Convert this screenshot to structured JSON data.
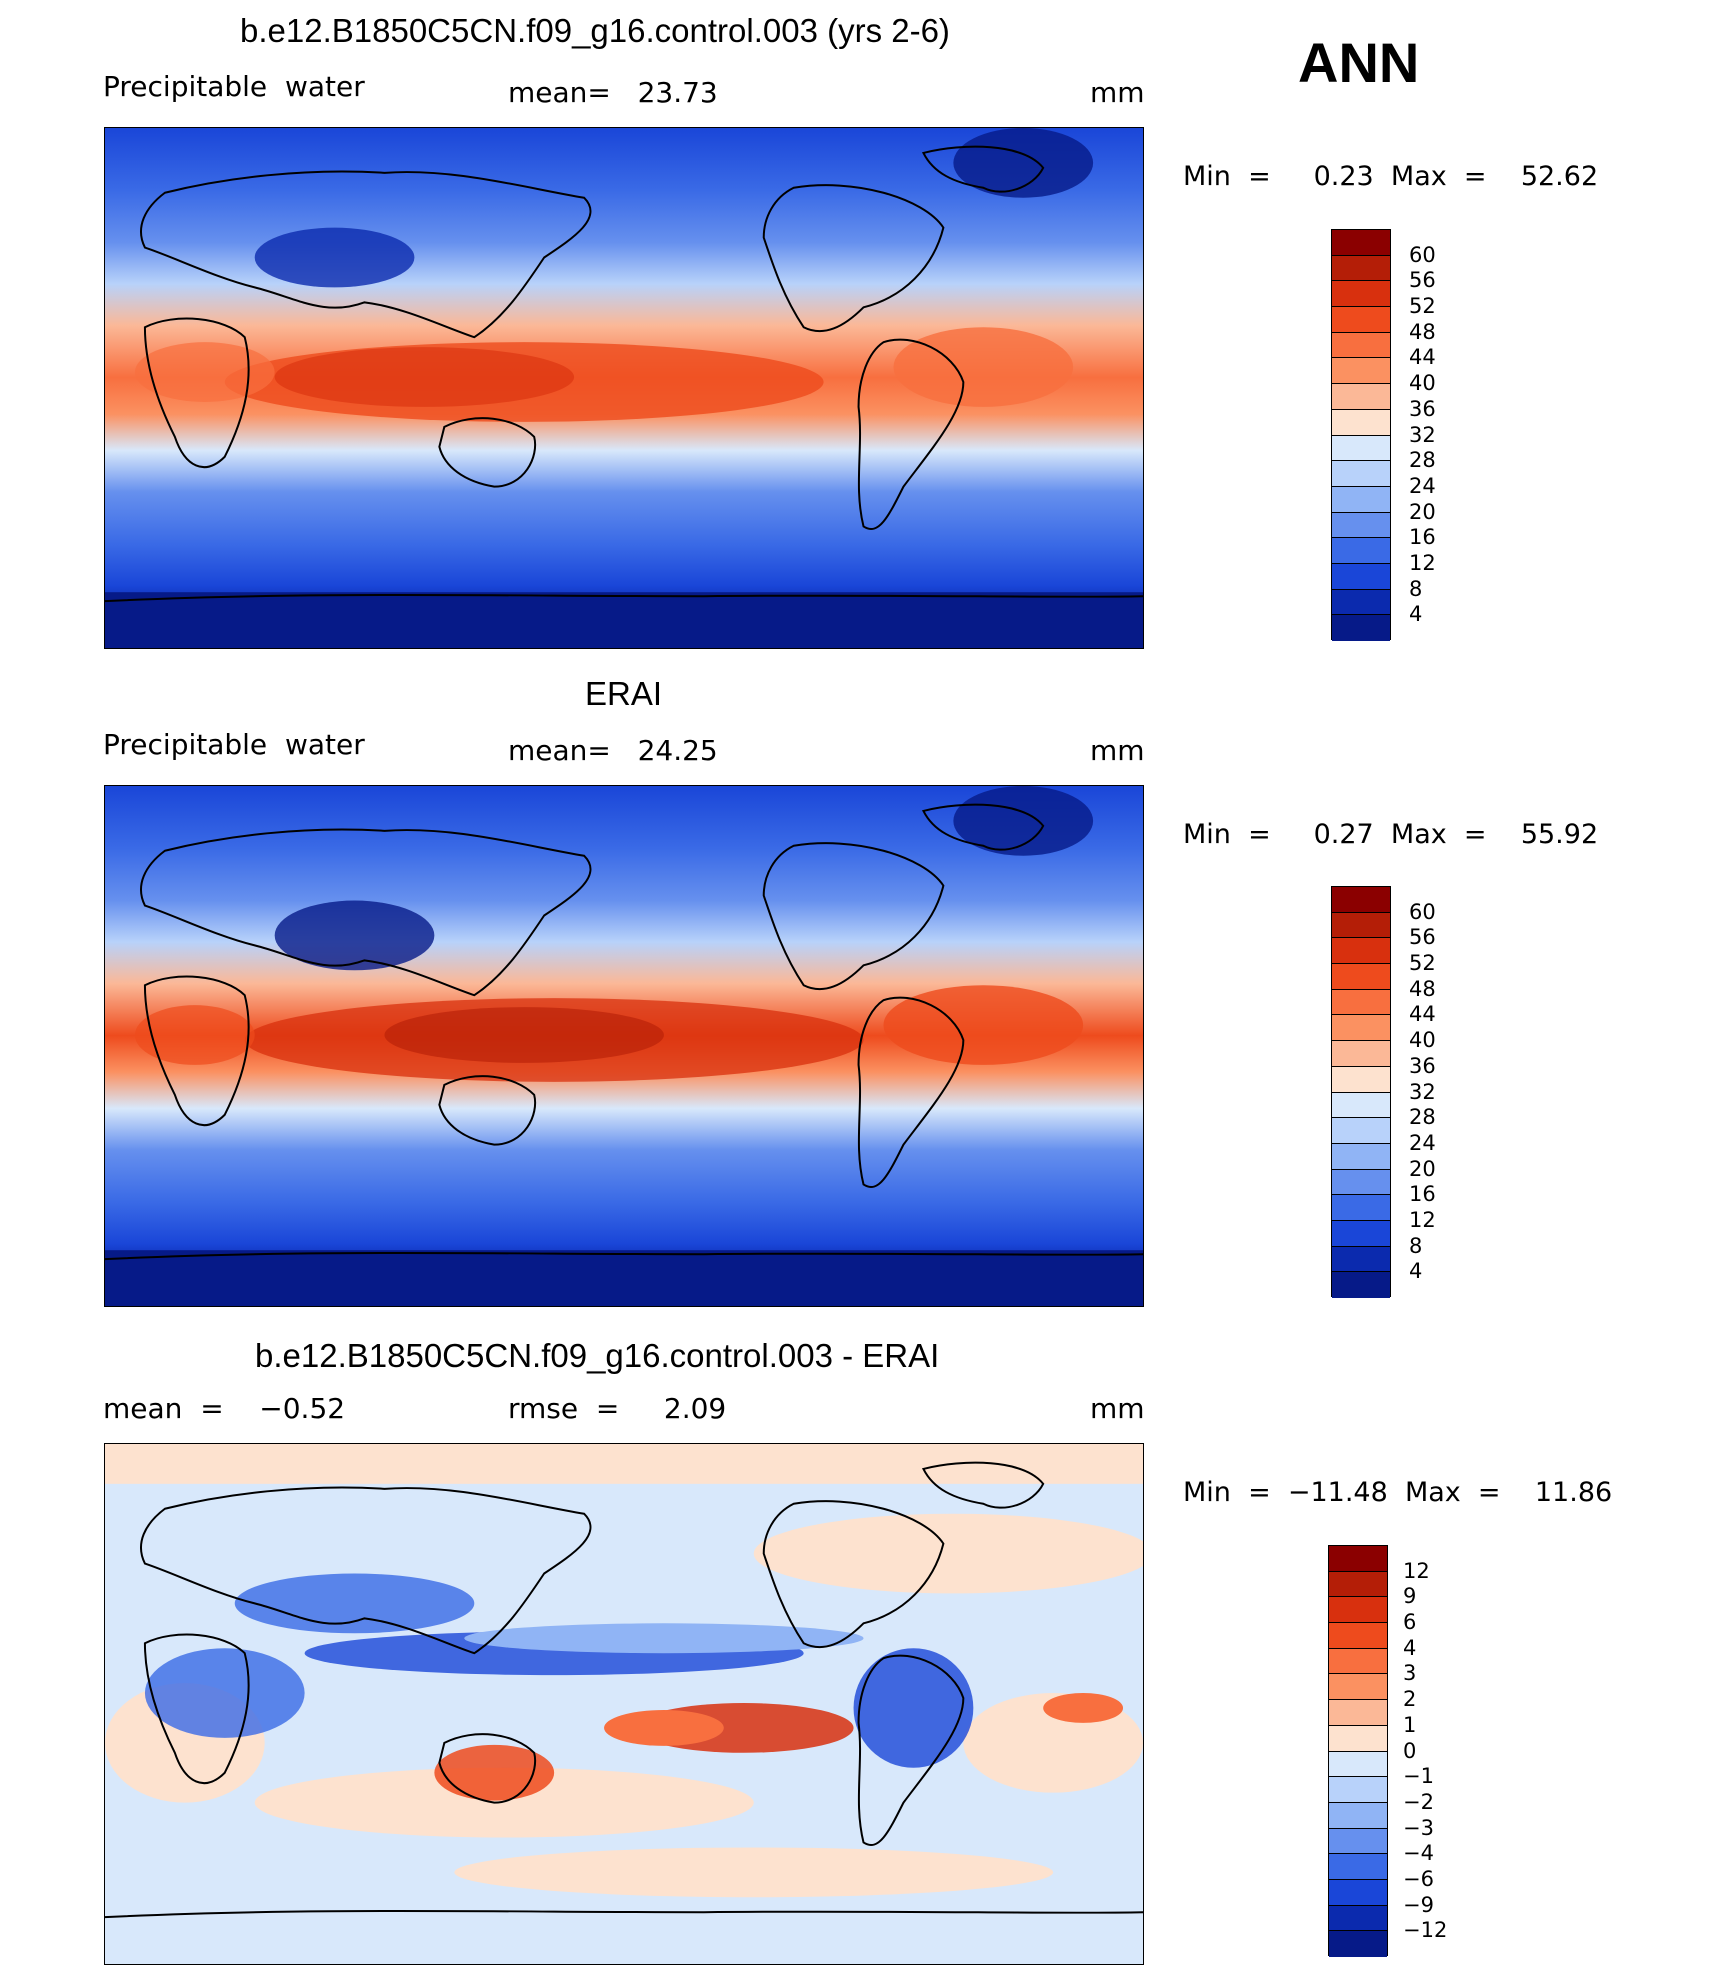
{
  "season": "ANN",
  "units": "mm",
  "panels": [
    {
      "title": "b.e12.B1850C5CN.f09_g16.control.003 (yrs 2-6)",
      "left_label": "Precipitable  water",
      "mid_label": "mean=   23.73",
      "right_label": "mm",
      "minmax": "Min  =     0.23  Max  =    52.62",
      "min": 0.23,
      "max": 52.62,
      "mean": 23.73
    },
    {
      "title": "ERAI",
      "left_label": "Precipitable  water",
      "mid_label": "mean=   24.25",
      "right_label": "mm",
      "minmax": "Min  =     0.27  Max  =    55.92",
      "min": 0.27,
      "max": 55.92,
      "mean": 24.25
    },
    {
      "title": "b.e12.B1850C5CN.f09_g16.control.003 - ERAI",
      "left_label": "mean  =    −0.52",
      "mid_label": "rmse  =     2.09",
      "right_label": "mm",
      "minmax": "Min  =  −11.48  Max  =    11.86",
      "min": -11.48,
      "max": 11.86,
      "mean": -0.52,
      "rmse": 2.09
    }
  ],
  "colorbars": {
    "abs": {
      "labels": [
        "60",
        "56",
        "52",
        "48",
        "44",
        "40",
        "36",
        "32",
        "28",
        "24",
        "20",
        "16",
        "12",
        "8",
        "4"
      ],
      "colors": [
        "#8b0000",
        "#b41e07",
        "#d8300e",
        "#ee4b1d",
        "#f86f3f",
        "#fb9161",
        "#fbb897",
        "#fde2cf",
        "#d8e8fb",
        "#b8d2fa",
        "#90b4f5",
        "#6690ee",
        "#3a6ae6",
        "#1a46d8",
        "#0b2aae",
        "#061a88"
      ]
    },
    "diff": {
      "labels": [
        "12",
        "9",
        "6",
        "4",
        "3",
        "2",
        "1",
        "0",
        "−1",
        "−2",
        "−3",
        "−4",
        "−6",
        "−9",
        "−12"
      ],
      "colors": [
        "#8b0000",
        "#b41e07",
        "#d8300e",
        "#ee4b1d",
        "#f86f3f",
        "#fb9161",
        "#fbb897",
        "#fde2cf",
        "#d8e8fb",
        "#b8d2fa",
        "#90b4f5",
        "#6690ee",
        "#3a6ae6",
        "#1a46d8",
        "#0b2aae",
        "#061a88"
      ]
    }
  }
}
